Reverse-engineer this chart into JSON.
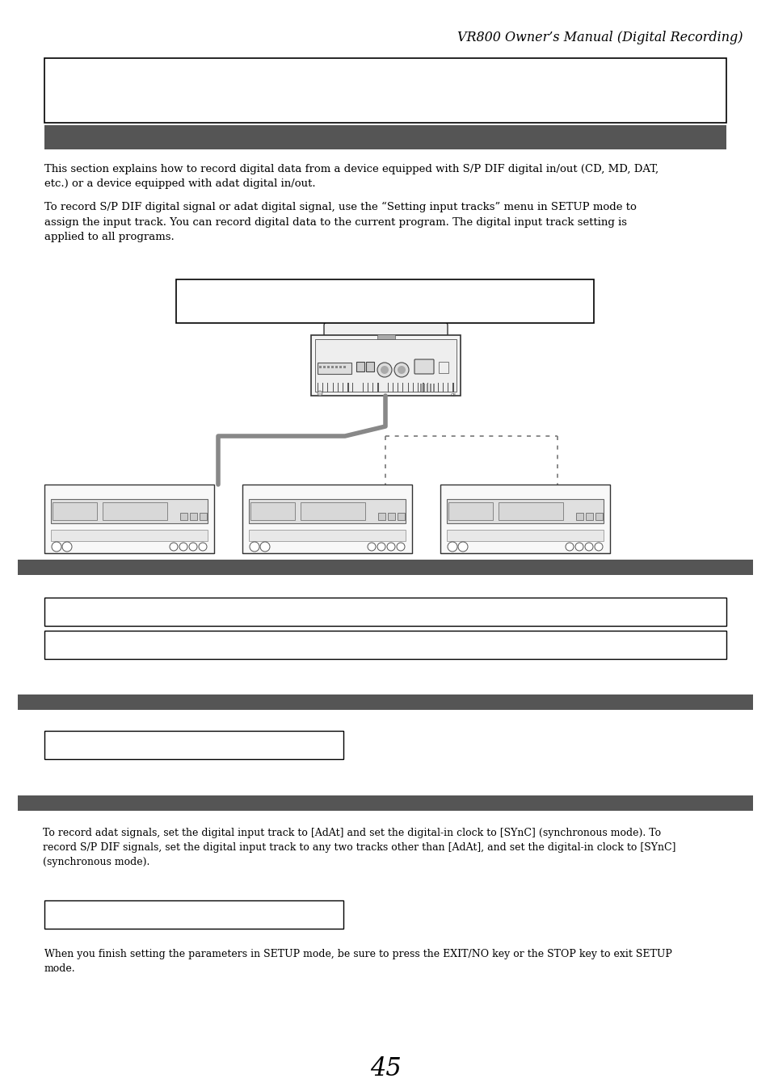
{
  "title": "VR800 Owner’s Manual (Digital Recording)",
  "header_bar_color": "#555555",
  "background_color": "#ffffff",
  "page_number": "45",
  "body_text1": "This section explains how to record digital data from a device equipped with S/P DIF digital in/out (CD, MD, DAT,\netc.) or a device equipped with adat digital in/out.",
  "body_text2": "To record S/P DIF digital signal or adat digital signal, use the “Setting input tracks” menu in SETUP mode to\nassign the input track. You can record digital data to the current program. The digital input track setting is\napplied to all programs.",
  "footer_note": "  To record adat signals, set the digital input track to [AdAt] and set the digital-in clock to [SYnC] (synchronous mode). To\n  record S/P DIF signals, set the digital input track to any two tracks other than [AdAt], and set the digital-in clock to [SYnC]\n  (synchronous mode).",
  "footer_text2": "When you finish setting the parameters in SETUP mode, be sure to press the EXIT/NO key or the STOP key to exit SETUP\nmode."
}
